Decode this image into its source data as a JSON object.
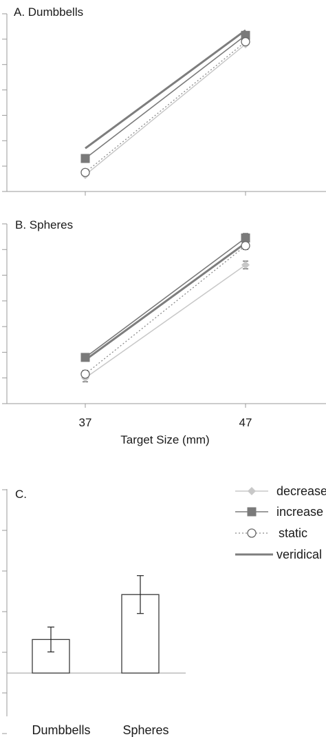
{
  "chart_data": [
    {
      "type": "line",
      "title": "A. Dumbbells",
      "x": [
        37,
        47
      ],
      "series": [
        {
          "name": "veridical",
          "values": [
            37.4,
            46.7
          ]
        },
        {
          "name": "increase",
          "values": [
            36.6,
            46.3
          ]
        },
        {
          "name": "static",
          "values": [
            35.5,
            45.8
          ]
        },
        {
          "name": "decrease",
          "values": [
            35.3,
            45.6
          ]
        }
      ],
      "ylim": [
        34.0,
        48.0
      ]
    },
    {
      "type": "line",
      "title": "B. Spheres",
      "x": [
        37,
        47
      ],
      "series": [
        {
          "name": "veridical",
          "values": [
            37.4,
            46.5
          ]
        },
        {
          "name": "increase",
          "values": [
            37.6,
            46.9
          ]
        },
        {
          "name": "static",
          "values": [
            36.3,
            46.3
          ]
        },
        {
          "name": "decrease",
          "values": [
            36.0,
            44.8
          ]
        }
      ],
      "error": {
        "increase": [
          0.3,
          0.35
        ],
        "static": [
          0.3,
          0.3
        ],
        "decrease": [
          0.3,
          0.3
        ]
      },
      "ylim": [
        34.0,
        48.0
      ],
      "xticks": [
        "37",
        "47"
      ],
      "xlabel": "Target Size (mm)"
    },
    {
      "type": "bar",
      "title": "C.",
      "categories": [
        "Dumbbells",
        "Spheres"
      ],
      "values": [
        0.62,
        1.45
      ],
      "errors": [
        0.23,
        0.35
      ],
      "ylim": [
        -0.8,
        3.4
      ],
      "baseline": 0
    }
  ],
  "legend": {
    "items": [
      {
        "label": "decrease",
        "key": "decrease"
      },
      {
        "label": "increase",
        "key": "increase"
      },
      {
        "label": "static",
        "key": "static"
      },
      {
        "label": "veridical",
        "key": "veridical"
      }
    ]
  },
  "colors": {
    "veridical": "#7d7d7d",
    "increase": "#7a7a7a",
    "static": "#8a8a8a",
    "decrease": "#c8c8c8",
    "axis": "#9a9a9a"
  }
}
